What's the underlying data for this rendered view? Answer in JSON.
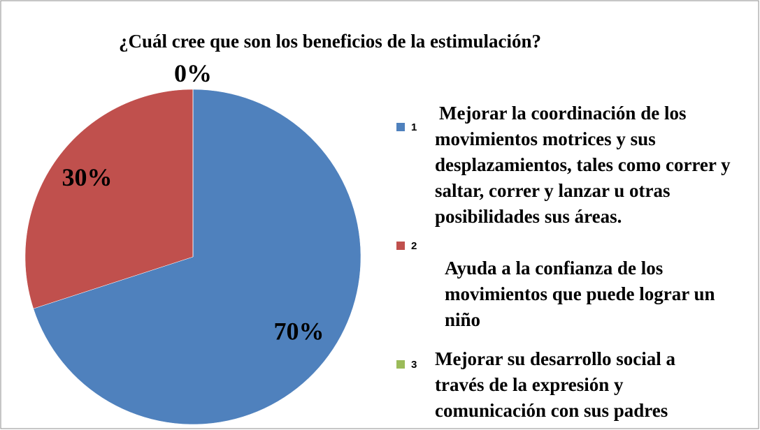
{
  "chart_data": {
    "type": "pie",
    "title": "¿Cuál cree que son los beneficios de la estimulación?",
    "categories": [
      "1",
      "2",
      "3"
    ],
    "values": [
      70,
      30,
      0
    ],
    "value_labels": [
      "70%",
      "30%",
      "0%"
    ],
    "colors": [
      "#4f81bd",
      "#c0504d",
      "#9bbb59"
    ],
    "descriptions": [
      "Mejorar la coordinación de los movimientos motrices y sus desplazamientos, tales como correr y saltar, correr y lanzar u otras posibilidades sus áreas.",
      "Ayuda a la confianza de los movimientos que puede lograr un niño",
      "Mejorar su desarrollo social a través de la expresión y comunicación con sus padres"
    ],
    "legend": "right"
  }
}
